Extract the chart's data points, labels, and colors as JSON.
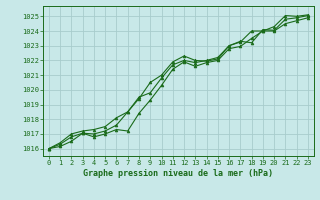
{
  "title": "Graphe pression niveau de la mer (hPa)",
  "bg_color": "#c8e8e8",
  "plot_bg_color": "#c8e8e8",
  "grid_color": "#a8cccc",
  "line_color": "#1a6b1a",
  "marker_color": "#1a6b1a",
  "xlim": [
    -0.5,
    23.5
  ],
  "ylim": [
    1015.5,
    1025.7
  ],
  "yticks": [
    1016,
    1017,
    1018,
    1019,
    1020,
    1021,
    1022,
    1023,
    1024,
    1025
  ],
  "xticks": [
    0,
    1,
    2,
    3,
    4,
    5,
    6,
    7,
    8,
    9,
    10,
    11,
    12,
    13,
    14,
    15,
    16,
    17,
    18,
    19,
    20,
    21,
    22,
    23
  ],
  "series1": [
    1016.0,
    1016.15,
    1016.5,
    1017.05,
    1016.8,
    1017.0,
    1017.3,
    1017.2,
    1018.4,
    1019.3,
    1020.3,
    1021.4,
    1021.9,
    1021.6,
    1021.85,
    1022.0,
    1022.8,
    1022.95,
    1023.5,
    1024.0,
    1024.0,
    1024.5,
    1024.7,
    1024.9
  ],
  "series2": [
    1016.0,
    1016.3,
    1016.8,
    1017.05,
    1017.0,
    1017.2,
    1017.6,
    1018.5,
    1019.4,
    1020.5,
    1021.0,
    1021.9,
    1022.3,
    1022.0,
    1021.95,
    1022.1,
    1023.0,
    1023.3,
    1023.2,
    1024.1,
    1024.05,
    1024.8,
    1024.9,
    1025.05
  ],
  "series3": [
    1016.0,
    1016.4,
    1017.0,
    1017.2,
    1017.3,
    1017.5,
    1018.1,
    1018.5,
    1019.5,
    1019.8,
    1020.8,
    1021.7,
    1022.0,
    1021.85,
    1022.0,
    1022.2,
    1023.0,
    1023.25,
    1024.0,
    1024.0,
    1024.3,
    1025.05,
    1025.0,
    1025.1
  ]
}
